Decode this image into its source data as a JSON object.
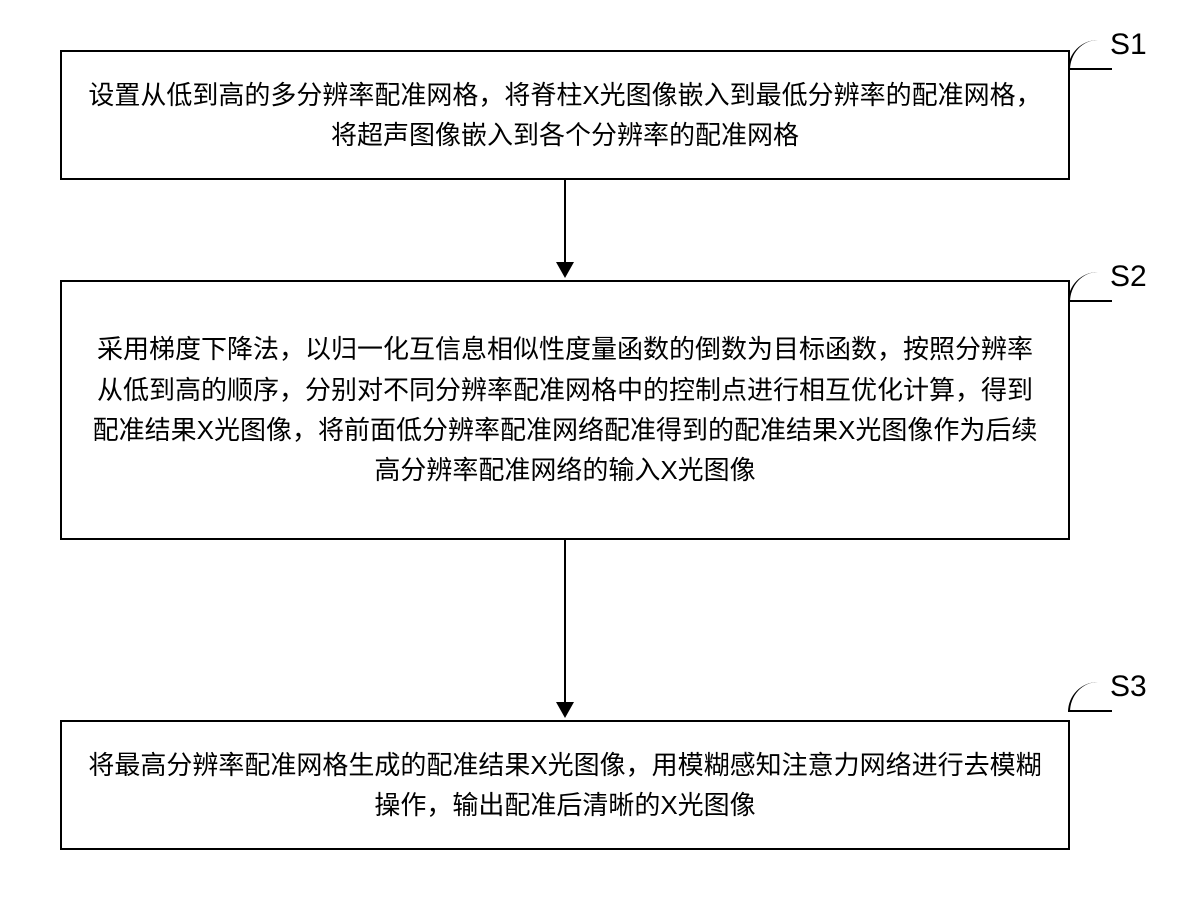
{
  "flowchart": {
    "type": "flowchart",
    "background_color": "#ffffff",
    "node_border_color": "#000000",
    "node_border_width": 2,
    "text_color": "#000000",
    "node_fontsize": 26,
    "label_fontsize": 30,
    "arrow_color": "#000000",
    "steps": {
      "s1": {
        "label": "S1",
        "text": "设置从低到高的多分辨率配准网格，将脊柱X光图像嵌入到最低分辨率的配准网格，将超声图像嵌入到各个分辨率的配准网格"
      },
      "s2": {
        "label": "S2",
        "text": "采用梯度下降法，以归一化互信息相似性度量函数的倒数为目标函数，按照分辨率从低到高的顺序，分别对不同分辨率配准网格中的控制点进行相互优化计算，得到配准结果X光图像，将前面低分辨率配准网络配准得到的配准结果X光图像作为后续高分辨率配准网络的输入X光图像"
      },
      "s3": {
        "label": "S3",
        "text": "将最高分辨率配准网格生成的配准结果X光图像，用模糊感知注意力网络进行去模糊操作，输出配准后清晰的X光图像"
      }
    },
    "edges": [
      {
        "from": "s1",
        "to": "s2"
      },
      {
        "from": "s2",
        "to": "s3"
      }
    ]
  }
}
